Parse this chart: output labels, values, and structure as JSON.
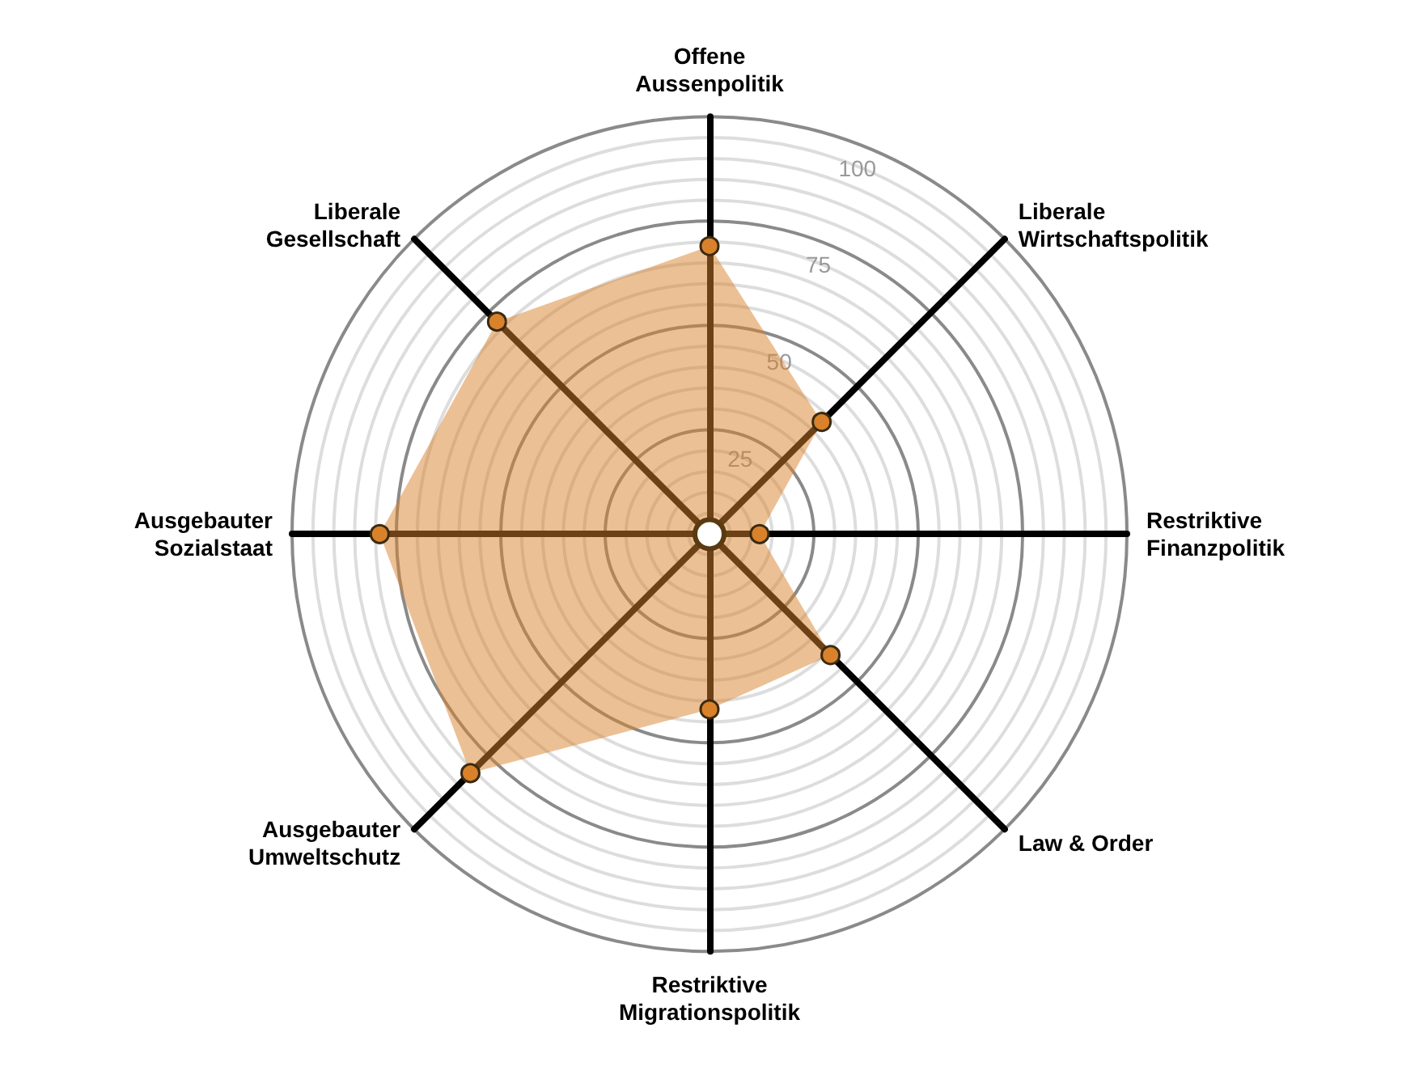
{
  "chart_data": {
    "type": "radar",
    "categories": [
      "Offene\nAussenpolitik",
      "Liberale\nWirtschaftspolitik",
      "Restriktive\nFinanzpolitik",
      "Law & Order",
      "Restriktive\nMigrationspolitik",
      "Ausgebauter\nUmweltschutz",
      "Ausgebauter\nSozialstaat",
      "Liberale\nGesellschaft"
    ],
    "series": [
      {
        "color": "#d9822b",
        "values": [
          69,
          38,
          12,
          41,
          42,
          81,
          79,
          72
        ]
      }
    ],
    "ylim": [
      0,
      100
    ],
    "yticks": [
      25,
      50,
      75,
      100
    ],
    "grid": true,
    "marker": "circle",
    "legend": false
  }
}
